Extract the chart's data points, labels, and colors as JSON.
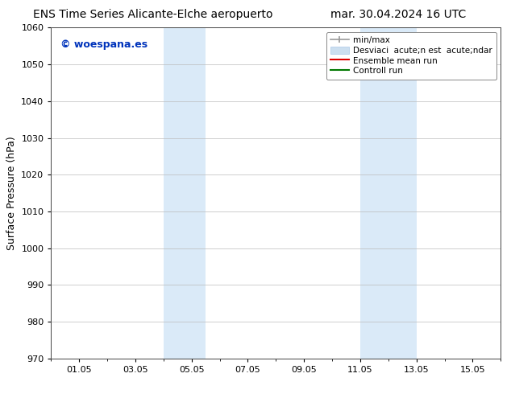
{
  "title_left": "ENS Time Series Alicante-Elche aeropuerto",
  "title_right": "mar. 30.04.2024 16 UTC",
  "ylabel": "Surface Pressure (hPa)",
  "ylim": [
    970,
    1060
  ],
  "yticks": [
    970,
    980,
    990,
    1000,
    1010,
    1020,
    1030,
    1040,
    1050,
    1060
  ],
  "xtick_labels": [
    "01.05",
    "03.05",
    "05.05",
    "07.05",
    "09.05",
    "11.05",
    "13.05",
    "15.05"
  ],
  "xtick_positions": [
    1,
    3,
    5,
    7,
    9,
    11,
    13,
    15
  ],
  "xmin": 0,
  "xmax": 16,
  "shaded_regions": [
    {
      "xmin": 4.0,
      "xmax": 5.5,
      "color": "#daeaf8"
    },
    {
      "xmin": 11.0,
      "xmax": 13.0,
      "color": "#daeaf8"
    }
  ],
  "watermark_text": "© woespana.es",
  "watermark_color": "#0033bb",
  "bg_color": "#ffffff",
  "grid_color": "#bbbbbb",
  "title_fontsize": 10,
  "axis_label_fontsize": 9,
  "tick_fontsize": 8,
  "legend_fontsize": 7.5
}
